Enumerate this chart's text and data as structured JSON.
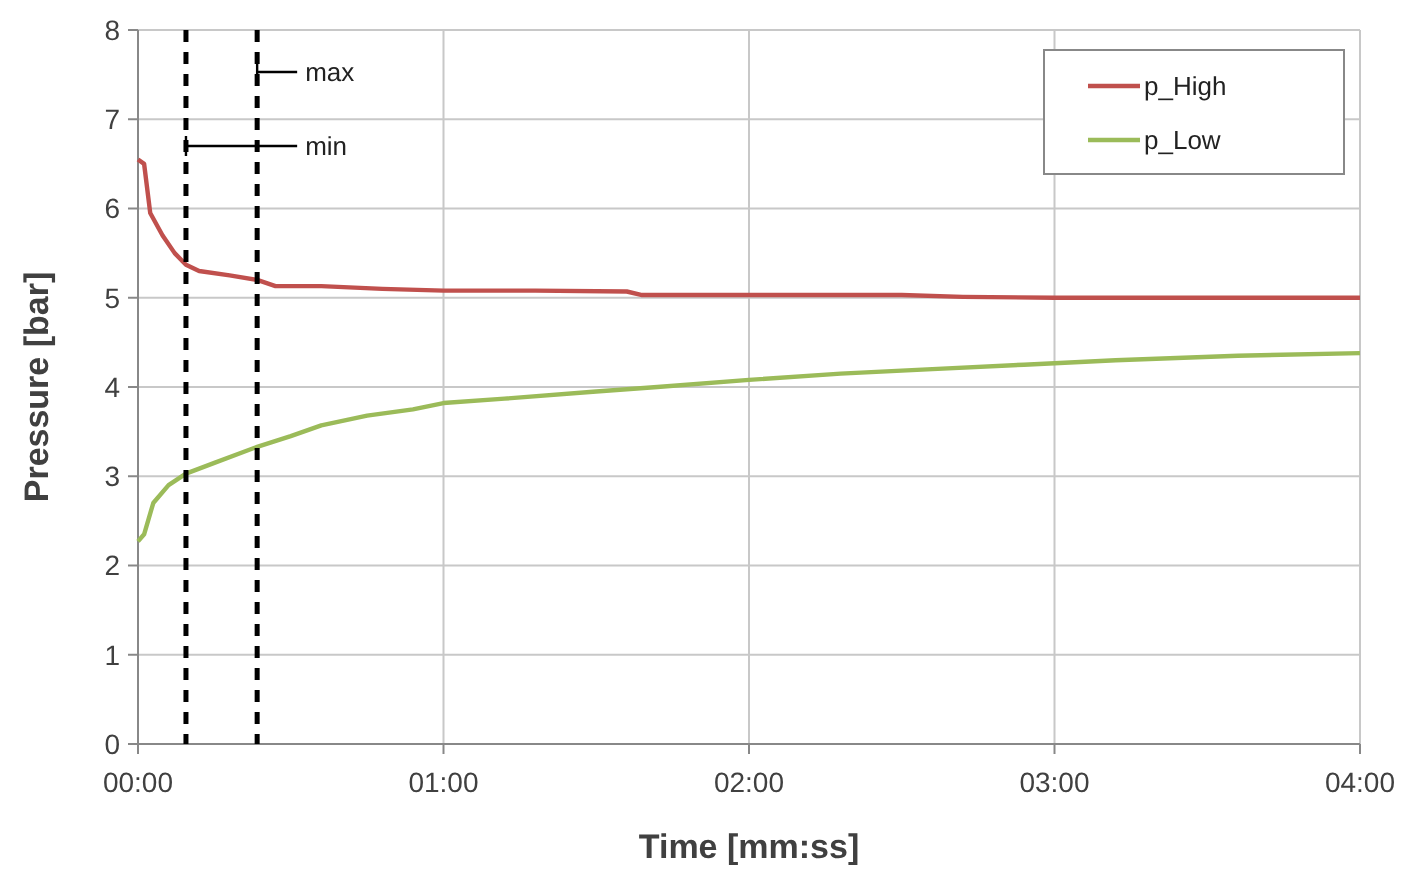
{
  "chart_data": {
    "type": "line",
    "xlabel": "Time [mm:ss]",
    "ylabel": "Pressure [bar]",
    "xlim": [
      0,
      4
    ],
    "xticks": [
      {
        "value": 0,
        "label": "00:00"
      },
      {
        "value": 1,
        "label": "01:00"
      },
      {
        "value": 2,
        "label": "02:00"
      },
      {
        "value": 3,
        "label": "03:00"
      },
      {
        "value": 4,
        "label": "04:00"
      }
    ],
    "ylim": [
      0,
      8
    ],
    "yticks": [
      0,
      1,
      2,
      3,
      4,
      5,
      6,
      7,
      8
    ],
    "grid": true,
    "legend": "top right",
    "marker": "none",
    "line_style": "solid",
    "series": [
      {
        "name": "p_High",
        "color": "#c0504d",
        "x": [
          0,
          0.02,
          0.04,
          0.08,
          0.12,
          0.157,
          0.2,
          0.3,
          0.39,
          0.45,
          0.6,
          0.8,
          1.0,
          1.3,
          1.6,
          1.65,
          2.0,
          2.5,
          2.7,
          3.0,
          4.0
        ],
        "values": [
          6.55,
          6.5,
          5.95,
          5.7,
          5.5,
          5.37,
          5.3,
          5.25,
          5.2,
          5.13,
          5.13,
          5.1,
          5.08,
          5.08,
          5.07,
          5.03,
          5.03,
          5.03,
          5.01,
          5.0,
          5.0
        ]
      },
      {
        "name": "p_Low",
        "color": "#9bbb59",
        "x": [
          0,
          0.02,
          0.05,
          0.1,
          0.157,
          0.25,
          0.39,
          0.5,
          0.6,
          0.75,
          0.9,
          1.0,
          1.2,
          1.5,
          1.7,
          2.0,
          2.3,
          2.6,
          2.9,
          3.2,
          3.6,
          4.0
        ],
        "values": [
          2.27,
          2.35,
          2.7,
          2.9,
          3.03,
          3.15,
          3.33,
          3.45,
          3.57,
          3.68,
          3.75,
          3.82,
          3.87,
          3.95,
          4.0,
          4.08,
          4.15,
          4.2,
          4.25,
          4.3,
          4.35,
          4.38
        ]
      }
    ],
    "ref_lines": [
      {
        "axis": "x",
        "value": 0.157,
        "line_style": "dashed",
        "color": "#000000"
      },
      {
        "axis": "x",
        "value": 0.39,
        "line_style": "dashed",
        "color": "#000000"
      }
    ],
    "annotations": [
      {
        "text": "max",
        "x": 0.39,
        "y": 7.53
      },
      {
        "text": "min",
        "x": 0.157,
        "y": 6.7
      }
    ]
  }
}
